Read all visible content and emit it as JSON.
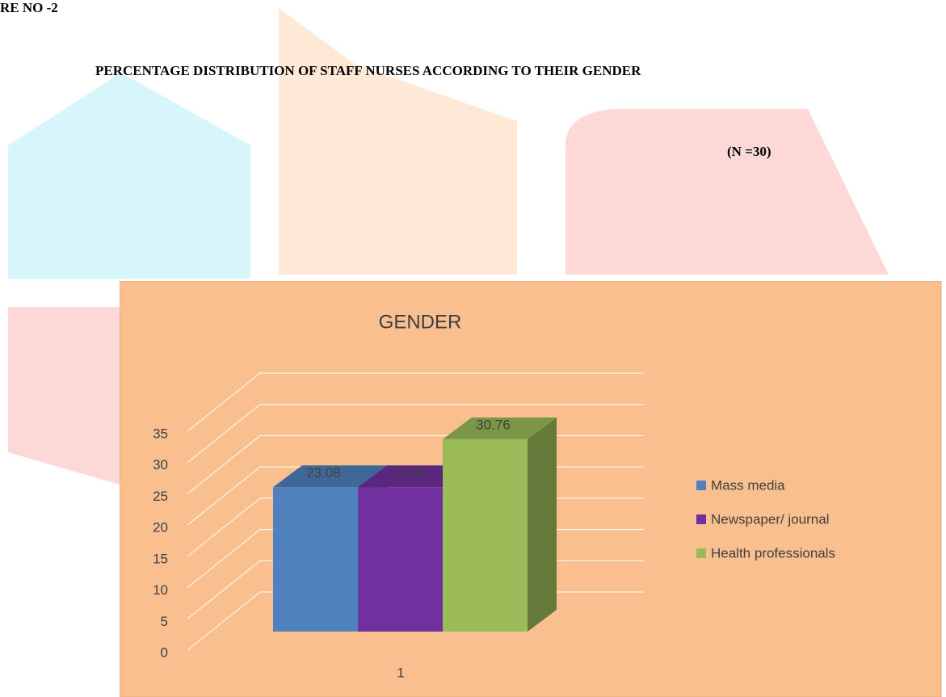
{
  "header": {
    "figure_label": "RE NO -2",
    "title": "PERCENTAGE DISTRIBUTION OF STAFF NURSES ACCORDING TO THEIR GENDER",
    "sample_size": "(N =30)"
  },
  "chart_data": {
    "type": "bar3d",
    "title": "GENDER",
    "categories": [
      "1"
    ],
    "series": [
      {
        "name": "Mass media",
        "color": "#4f81bd",
        "values": [
          23.08
        ]
      },
      {
        "name": "Newspaper/ journal",
        "color": "#7030a0",
        "values": [
          23.08
        ]
      },
      {
        "name": "Health professionals",
        "color": "#9bbb59",
        "values": [
          30.76
        ]
      }
    ],
    "ylim": [
      0,
      35
    ],
    "yticks": [
      0,
      5,
      10,
      15,
      20,
      25,
      30,
      35
    ],
    "grid": true,
    "legend": "right"
  }
}
